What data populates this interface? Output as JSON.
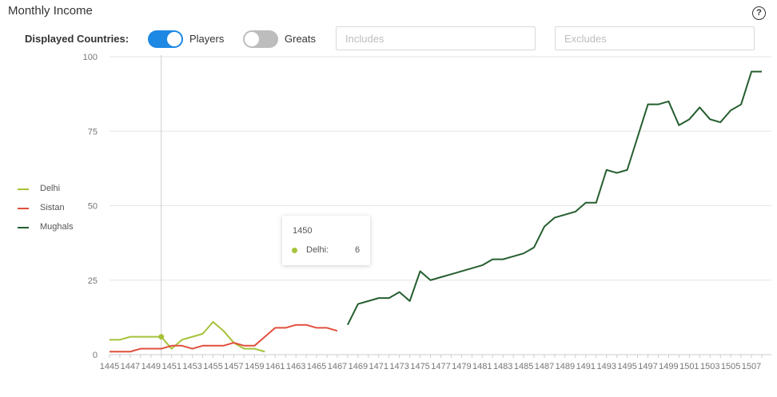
{
  "header": {
    "title": "Monthly Income",
    "help_icon": "?"
  },
  "controls": {
    "label": "Displayed Countries:",
    "players_label": "Players",
    "players_on": true,
    "greats_label": "Greats",
    "greats_on": false,
    "includes_placeholder": "Includes",
    "excludes_placeholder": "Excludes"
  },
  "tooltip": {
    "year": "1450",
    "series": "Delhi:",
    "value": "6"
  },
  "chart_data": {
    "type": "line",
    "x_range": [
      1445,
      1508
    ],
    "ylim": [
      0,
      100
    ],
    "yticks": [
      0,
      25,
      50,
      75,
      100
    ],
    "grid": true,
    "legend_position": "left",
    "crosshair_x": 1450,
    "series": [
      {
        "name": "Delhi",
        "color": "#a5c23a",
        "points": [
          [
            1445,
            5
          ],
          [
            1446,
            5
          ],
          [
            1447,
            6
          ],
          [
            1448,
            6
          ],
          [
            1449,
            6
          ],
          [
            1450,
            6
          ],
          [
            1451,
            2
          ],
          [
            1452,
            5
          ],
          [
            1453,
            6
          ],
          [
            1454,
            7
          ],
          [
            1455,
            11
          ],
          [
            1456,
            8
          ],
          [
            1457,
            4
          ],
          [
            1458,
            2
          ],
          [
            1459,
            2
          ],
          [
            1460,
            1
          ]
        ]
      },
      {
        "name": "Sistan",
        "color": "#e14f3d",
        "points": [
          [
            1445,
            1
          ],
          [
            1446,
            1
          ],
          [
            1447,
            1
          ],
          [
            1448,
            2
          ],
          [
            1449,
            2
          ],
          [
            1450,
            2
          ],
          [
            1451,
            3
          ],
          [
            1452,
            3
          ],
          [
            1453,
            2
          ],
          [
            1454,
            3
          ],
          [
            1455,
            3
          ],
          [
            1456,
            3
          ],
          [
            1457,
            4
          ],
          [
            1458,
            3
          ],
          [
            1459,
            3
          ],
          [
            1460,
            6
          ],
          [
            1461,
            9
          ],
          [
            1462,
            9
          ],
          [
            1463,
            10
          ],
          [
            1464,
            10
          ],
          [
            1465,
            9
          ],
          [
            1466,
            9
          ],
          [
            1467,
            8
          ]
        ]
      },
      {
        "name": "Mughals",
        "color": "#255e2f",
        "points": [
          [
            1468,
            10
          ],
          [
            1469,
            17
          ],
          [
            1470,
            18
          ],
          [
            1471,
            19
          ],
          [
            1472,
            19
          ],
          [
            1473,
            21
          ],
          [
            1474,
            18
          ],
          [
            1475,
            28
          ],
          [
            1476,
            25
          ],
          [
            1477,
            26
          ],
          [
            1478,
            27
          ],
          [
            1479,
            28
          ],
          [
            1480,
            29
          ],
          [
            1481,
            30
          ],
          [
            1482,
            32
          ],
          [
            1483,
            32
          ],
          [
            1484,
            33
          ],
          [
            1485,
            34
          ],
          [
            1486,
            36
          ],
          [
            1487,
            43
          ],
          [
            1488,
            46
          ],
          [
            1489,
            47
          ],
          [
            1490,
            48
          ],
          [
            1491,
            51
          ],
          [
            1492,
            51
          ],
          [
            1493,
            62
          ],
          [
            1494,
            61
          ],
          [
            1495,
            62
          ],
          [
            1496,
            73
          ],
          [
            1497,
            84
          ],
          [
            1498,
            84
          ],
          [
            1499,
            85
          ],
          [
            1500,
            77
          ],
          [
            1501,
            79
          ],
          [
            1502,
            83
          ],
          [
            1503,
            79
          ],
          [
            1504,
            78
          ],
          [
            1505,
            82
          ],
          [
            1506,
            84
          ],
          [
            1507,
            95
          ],
          [
            1508,
            95
          ]
        ]
      }
    ],
    "xtick_labels": [
      "1445",
      "1447",
      "1449",
      "1451",
      "1453",
      "1455",
      "1457",
      "1459",
      "1461",
      "1463",
      "1465",
      "1467",
      "1469",
      "1471",
      "1473",
      "1475",
      "1477",
      "1479",
      "1481",
      "1483",
      "1485",
      "1487",
      "1489",
      "1491",
      "1493",
      "1495",
      "1497",
      "1499",
      "1501",
      "1503",
      "1505",
      "1507"
    ]
  }
}
